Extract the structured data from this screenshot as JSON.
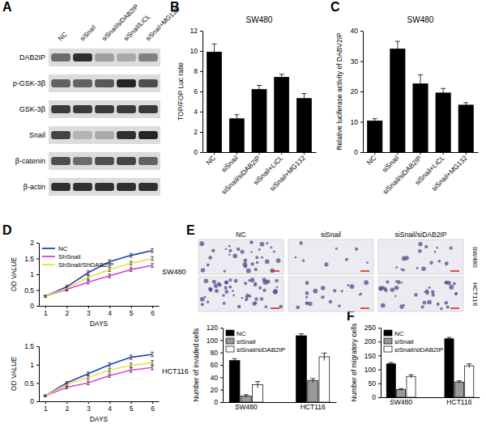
{
  "blot": {
    "panel": "A",
    "lanes": [
      "NC",
      "siSnail",
      "siSnail/siDAB2IP",
      "siSnail/LiCL",
      "siSnail+MG132"
    ],
    "rows": [
      {
        "label": "DAB2IP",
        "intensity": [
          0.55,
          0.85,
          0.3,
          0.25,
          0.45
        ]
      },
      {
        "label": "p-GSK-3β",
        "intensity": [
          0.6,
          0.6,
          0.65,
          0.9,
          0.7
        ]
      },
      {
        "label": "GSK-3β",
        "intensity": [
          0.8,
          0.8,
          0.8,
          0.8,
          0.8
        ]
      },
      {
        "label": "Snail",
        "intensity": [
          0.75,
          0.2,
          0.25,
          0.85,
          0.9
        ]
      },
      {
        "label": "β-catenin",
        "intensity": [
          0.7,
          0.55,
          0.7,
          0.75,
          0.6
        ]
      },
      {
        "label": "β-actin",
        "intensity": [
          0.85,
          0.85,
          0.85,
          0.85,
          0.85
        ]
      }
    ]
  },
  "chart_data": [
    {
      "type": "bar",
      "panel": "B",
      "title": "SW480",
      "ylabel": "TOP/FOP Luc ratio",
      "categories": [
        "NC",
        "siSnail",
        "siSnail/siDAB2IP",
        "siSnail+LiCL",
        "siSnail+MG132"
      ],
      "values": [
        9.9,
        3.3,
        6.2,
        7.4,
        5.3
      ],
      "errors": [
        0.8,
        0.4,
        0.4,
        0.3,
        0.5
      ],
      "color": "#000000",
      "ylim": [
        0,
        12
      ],
      "yticks": [
        0,
        2,
        4,
        6,
        8,
        10,
        12
      ]
    },
    {
      "type": "bar",
      "panel": "C",
      "title": "SW480",
      "ylabel": "Relative luciferase activity of DABV2IP",
      "categories": [
        "NC",
        "siSnail",
        "siSnail/siDAB2IP",
        "siSnail+LiCL",
        "siSnail+MG132"
      ],
      "values": [
        10.3,
        34,
        22.5,
        19.5,
        15.5
      ],
      "errors": [
        0.7,
        2.5,
        3,
        1.5,
        0.8
      ],
      "color": "#000000",
      "ylim": [
        0,
        40
      ],
      "yticks": [
        0,
        10,
        20,
        30,
        40
      ]
    },
    {
      "type": "line",
      "panel": "D",
      "title": "SW480",
      "xlabel": "DAYS",
      "ylabel": "OD VALUE",
      "x": [
        1,
        2,
        3,
        4,
        5,
        6
      ],
      "xlim": [
        0.7,
        6.3
      ],
      "xticks": [
        1,
        2,
        3,
        4,
        5,
        6
      ],
      "ylim": [
        0,
        2
      ],
      "yticks": [
        0,
        0.5,
        1,
        1.5,
        2
      ],
      "legend": "top-left",
      "series": [
        {
          "name": "NC",
          "color": "#2040c0",
          "values": [
            0.3,
            0.6,
            1.05,
            1.4,
            1.6,
            1.75
          ],
          "errors": [
            0.03,
            0.05,
            0.06,
            0.06,
            0.06,
            0.06
          ]
        },
        {
          "name": "ShSnail",
          "color": "#e040e0",
          "values": [
            0.3,
            0.52,
            0.75,
            0.95,
            1.15,
            1.28
          ],
          "errors": [
            0.03,
            0.05,
            0.06,
            0.06,
            0.06,
            0.06
          ]
        },
        {
          "name": "ShSnail/ShDAB2IP",
          "color": "#e8e040",
          "values": [
            0.3,
            0.55,
            0.9,
            1.15,
            1.35,
            1.5
          ],
          "errors": [
            0.03,
            0.05,
            0.06,
            0.06,
            0.06,
            0.06
          ]
        }
      ]
    },
    {
      "type": "line",
      "title": "HCT116",
      "xlabel": "DAYS",
      "ylabel": "OD VALUE",
      "x": [
        1,
        2,
        3,
        4,
        5,
        6
      ],
      "xlim": [
        0.7,
        6.3
      ],
      "xticks": [
        1,
        2,
        3,
        4,
        5,
        6
      ],
      "ylim": [
        0,
        1.5
      ],
      "yticks": [
        0,
        0.5,
        1,
        1.5
      ],
      "series": [
        {
          "color": "#2040c0",
          "values": [
            0.15,
            0.5,
            0.75,
            1.0,
            1.2,
            1.28
          ],
          "errors": [
            0.02,
            0.04,
            0.05,
            0.05,
            0.06,
            0.06
          ]
        },
        {
          "color": "#e040e0",
          "values": [
            0.15,
            0.38,
            0.5,
            0.7,
            0.85,
            0.92
          ],
          "errors": [
            0.02,
            0.04,
            0.05,
            0.05,
            0.06,
            0.06
          ]
        },
        {
          "color": "#e8e040",
          "values": [
            0.15,
            0.45,
            0.65,
            0.85,
            0.98,
            1.05
          ],
          "errors": [
            0.02,
            0.04,
            0.05,
            0.05,
            0.06,
            0.06
          ]
        }
      ]
    },
    {
      "type": "bar",
      "ylabel": "Number of invaded cells",
      "categories": [
        "SW480",
        "HCT116"
      ],
      "ylim": [
        0,
        120
      ],
      "yticks": [
        0,
        20,
        40,
        60,
        80,
        100,
        120
      ],
      "legend": "top-left",
      "series": [
        {
          "name": "NC",
          "color": "#000000",
          "values": [
            67,
            107
          ],
          "errors": [
            3,
            3
          ]
        },
        {
          "name": "siSnail",
          "color": "#999999",
          "values": [
            10,
            35
          ],
          "errors": [
            2,
            3
          ]
        },
        {
          "name": "siSnail/siDAB2IP",
          "color": "#ffffff",
          "values": [
            28,
            73
          ],
          "errors": [
            5,
            6
          ]
        }
      ]
    },
    {
      "type": "bar",
      "panel": "F",
      "ylabel": "Number of migratory cells",
      "categories": [
        "SW480",
        "HCT116"
      ],
      "ylim": [
        0,
        250
      ],
      "yticks": [
        0,
        50,
        100,
        150,
        200,
        250
      ],
      "legend": "top-left",
      "series": [
        {
          "name": "NC",
          "color": "#000000",
          "values": [
            120,
            210
          ],
          "errors": [
            5,
            5
          ]
        },
        {
          "name": "siSnail",
          "color": "#999999",
          "values": [
            28,
            55
          ],
          "errors": [
            3,
            4
          ]
        },
        {
          "name": "siSnail/siDAB2IP",
          "color": "#ffffff",
          "values": [
            75,
            113
          ],
          "errors": [
            6,
            7
          ]
        }
      ]
    }
  ],
  "micrographs": {
    "panel": "E",
    "columns": [
      "NC",
      "siSnail",
      "siSnail/siDAB2IP"
    ],
    "rows": [
      "SW480",
      "HCT116"
    ]
  }
}
